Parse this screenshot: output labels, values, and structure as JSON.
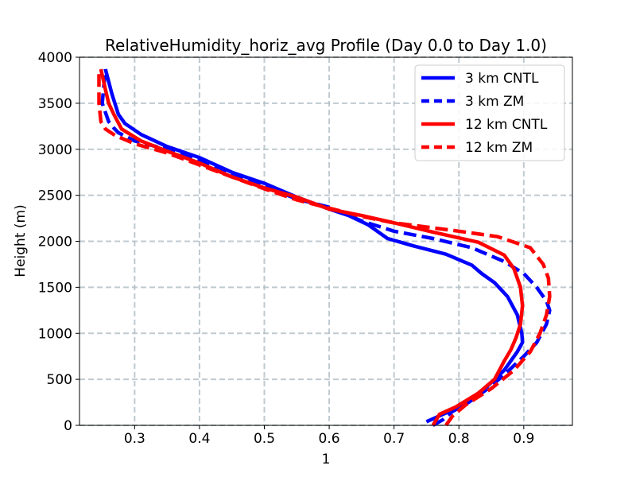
{
  "chart_data": {
    "type": "line",
    "title": "RelativeHumidity_horiz_avg Profile (Day 0.0 to Day 1.0)",
    "xlabel": "1",
    "ylabel": "Height (m)",
    "xlim": [
      0.215,
      0.975
    ],
    "ylim": [
      0,
      4000
    ],
    "xticks": [
      0.3,
      0.4,
      0.5,
      0.6,
      0.7,
      0.8,
      0.9
    ],
    "yticks": [
      0,
      500,
      1000,
      1500,
      2000,
      2500,
      3000,
      3500,
      4000
    ],
    "xtick_labels": [
      "0.3",
      "0.4",
      "0.5",
      "0.6",
      "0.7",
      "0.8",
      "0.9"
    ],
    "ytick_labels": [
      "0",
      "500",
      "1000",
      "1500",
      "2000",
      "2500",
      "3000",
      "3500",
      "4000"
    ],
    "grid": true,
    "legend_position": "top-right",
    "series": [
      {
        "name": "3 km CNTL",
        "color": "#0000ff",
        "dash": "solid",
        "points": [
          [
            0.75,
            40
          ],
          [
            0.763,
            80
          ],
          [
            0.785,
            150
          ],
          [
            0.81,
            250
          ],
          [
            0.84,
            400
          ],
          [
            0.87,
            600
          ],
          [
            0.89,
            800
          ],
          [
            0.898,
            900
          ],
          [
            0.897,
            1000
          ],
          [
            0.89,
            1200
          ],
          [
            0.875,
            1400
          ],
          [
            0.855,
            1550
          ],
          [
            0.835,
            1650
          ],
          [
            0.82,
            1740
          ],
          [
            0.78,
            1860
          ],
          [
            0.73,
            1950
          ],
          [
            0.69,
            2030
          ],
          [
            0.66,
            2180
          ],
          [
            0.63,
            2280
          ],
          [
            0.6,
            2350
          ],
          [
            0.55,
            2480
          ],
          [
            0.5,
            2630
          ],
          [
            0.45,
            2750
          ],
          [
            0.4,
            2910
          ],
          [
            0.35,
            3030
          ],
          [
            0.31,
            3160
          ],
          [
            0.285,
            3280
          ],
          [
            0.275,
            3380
          ],
          [
            0.265,
            3600
          ],
          [
            0.255,
            3870
          ]
        ]
      },
      {
        "name": "3 km ZM",
        "color": "#0000ff",
        "dash": "dashed",
        "points": [
          [
            0.76,
            0
          ],
          [
            0.775,
            60
          ],
          [
            0.79,
            150
          ],
          [
            0.815,
            250
          ],
          [
            0.845,
            400
          ],
          [
            0.87,
            550
          ],
          [
            0.9,
            750
          ],
          [
            0.92,
            900
          ],
          [
            0.935,
            1100
          ],
          [
            0.94,
            1250
          ],
          [
            0.935,
            1350
          ],
          [
            0.92,
            1500
          ],
          [
            0.9,
            1650
          ],
          [
            0.87,
            1780
          ],
          [
            0.82,
            1930
          ],
          [
            0.76,
            2030
          ],
          [
            0.7,
            2110
          ],
          [
            0.65,
            2220
          ],
          [
            0.6,
            2370
          ],
          [
            0.55,
            2460
          ],
          [
            0.5,
            2600
          ],
          [
            0.45,
            2720
          ],
          [
            0.4,
            2880
          ],
          [
            0.35,
            3000
          ],
          [
            0.3,
            3090
          ],
          [
            0.275,
            3180
          ],
          [
            0.268,
            3230
          ],
          [
            0.26,
            3300
          ],
          [
            0.25,
            3500
          ],
          [
            0.255,
            3870
          ]
        ]
      },
      {
        "name": "12 km CNTL",
        "color": "#ff0000",
        "dash": "solid",
        "points": [
          [
            0.76,
            0
          ],
          [
            0.77,
            120
          ],
          [
            0.795,
            200
          ],
          [
            0.83,
            350
          ],
          [
            0.855,
            500
          ],
          [
            0.87,
            700
          ],
          [
            0.88,
            820
          ],
          [
            0.888,
            950
          ],
          [
            0.895,
            1100
          ],
          [
            0.898,
            1300
          ],
          [
            0.895,
            1500
          ],
          [
            0.885,
            1700
          ],
          [
            0.87,
            1850
          ],
          [
            0.83,
            1990
          ],
          [
            0.76,
            2100
          ],
          [
            0.7,
            2200
          ],
          [
            0.65,
            2280
          ],
          [
            0.6,
            2350
          ],
          [
            0.55,
            2480
          ],
          [
            0.5,
            2580
          ],
          [
            0.45,
            2700
          ],
          [
            0.4,
            2850
          ],
          [
            0.35,
            2980
          ],
          [
            0.31,
            3090
          ],
          [
            0.28,
            3220
          ],
          [
            0.268,
            3380
          ],
          [
            0.26,
            3500
          ],
          [
            0.255,
            3650
          ],
          [
            0.248,
            3870
          ]
        ]
      },
      {
        "name": "12 km ZM",
        "color": "#ff0000",
        "dash": "dashed",
        "points": [
          [
            0.78,
            0
          ],
          [
            0.79,
            100
          ],
          [
            0.81,
            220
          ],
          [
            0.85,
            400
          ],
          [
            0.885,
            600
          ],
          [
            0.91,
            800
          ],
          [
            0.925,
            1000
          ],
          [
            0.935,
            1200
          ],
          [
            0.94,
            1400
          ],
          [
            0.938,
            1600
          ],
          [
            0.93,
            1750
          ],
          [
            0.91,
            1930
          ],
          [
            0.86,
            2050
          ],
          [
            0.8,
            2110
          ],
          [
            0.7,
            2200
          ],
          [
            0.65,
            2270
          ],
          [
            0.6,
            2360
          ],
          [
            0.55,
            2450
          ],
          [
            0.5,
            2570
          ],
          [
            0.45,
            2700
          ],
          [
            0.4,
            2830
          ],
          [
            0.35,
            2960
          ],
          [
            0.3,
            3060
          ],
          [
            0.27,
            3150
          ],
          [
            0.255,
            3220
          ],
          [
            0.248,
            3300
          ],
          [
            0.245,
            3500
          ],
          [
            0.245,
            3870
          ]
        ]
      }
    ]
  }
}
